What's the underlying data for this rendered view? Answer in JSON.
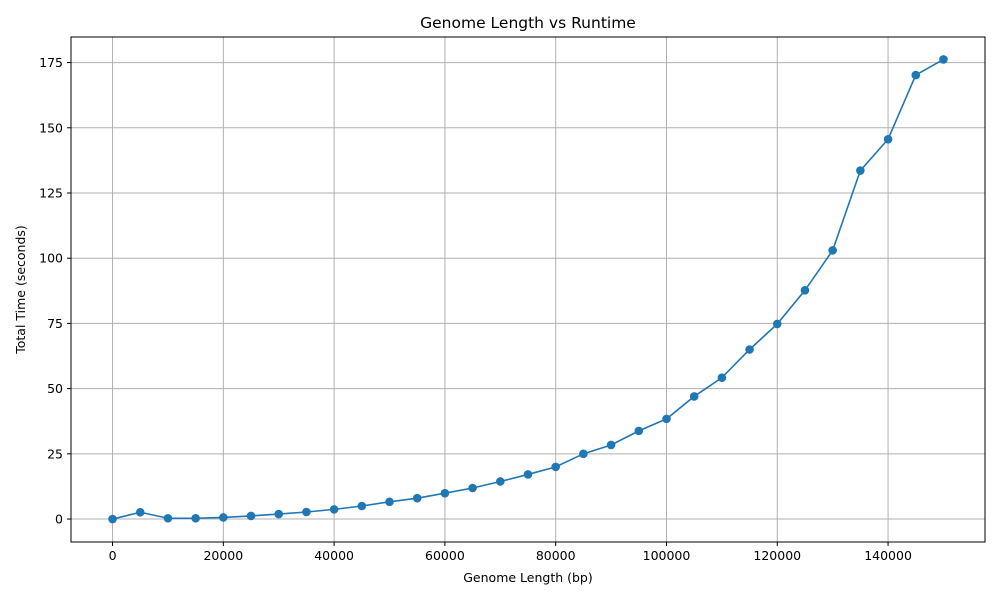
{
  "chart_data": {
    "type": "line",
    "title": "Genome Length vs Runtime",
    "xlabel": "Genome Length (bp)",
    "ylabel": "Total Time (seconds)",
    "xlim": [
      -7500,
      157500
    ],
    "ylim": [
      -8.8,
      184.8
    ],
    "xticks": [
      0,
      20000,
      40000,
      60000,
      80000,
      100000,
      120000,
      140000
    ],
    "xtick_labels": [
      "0",
      "20000",
      "40000",
      "60000",
      "80000",
      "100000",
      "120000",
      "140000"
    ],
    "yticks": [
      0,
      25,
      50,
      75,
      100,
      125,
      150,
      175
    ],
    "ytick_labels": [
      "0",
      "25",
      "50",
      "75",
      "100",
      "125",
      "150",
      "175"
    ],
    "grid": true,
    "marker": "circle",
    "series": [
      {
        "color": "#1f77b4",
        "x": [
          0,
          5000,
          10000,
          15000,
          20000,
          25000,
          30000,
          35000,
          40000,
          45000,
          50000,
          55000,
          60000,
          65000,
          70000,
          75000,
          80000,
          85000,
          90000,
          95000,
          100000,
          105000,
          110000,
          115000,
          120000,
          125000,
          130000,
          135000,
          140000,
          145000,
          150000
        ],
        "y": [
          0.0,
          2.6,
          0.3,
          0.3,
          0.6,
          1.2,
          1.9,
          2.7,
          3.7,
          5.0,
          6.6,
          8.0,
          9.9,
          11.9,
          14.4,
          17.1,
          20.0,
          25.0,
          28.4,
          33.8,
          38.4,
          47.0,
          54.2,
          65.0,
          74.8,
          87.7,
          103.0,
          133.6,
          145.6,
          170.2,
          176.2
        ]
      }
    ]
  }
}
